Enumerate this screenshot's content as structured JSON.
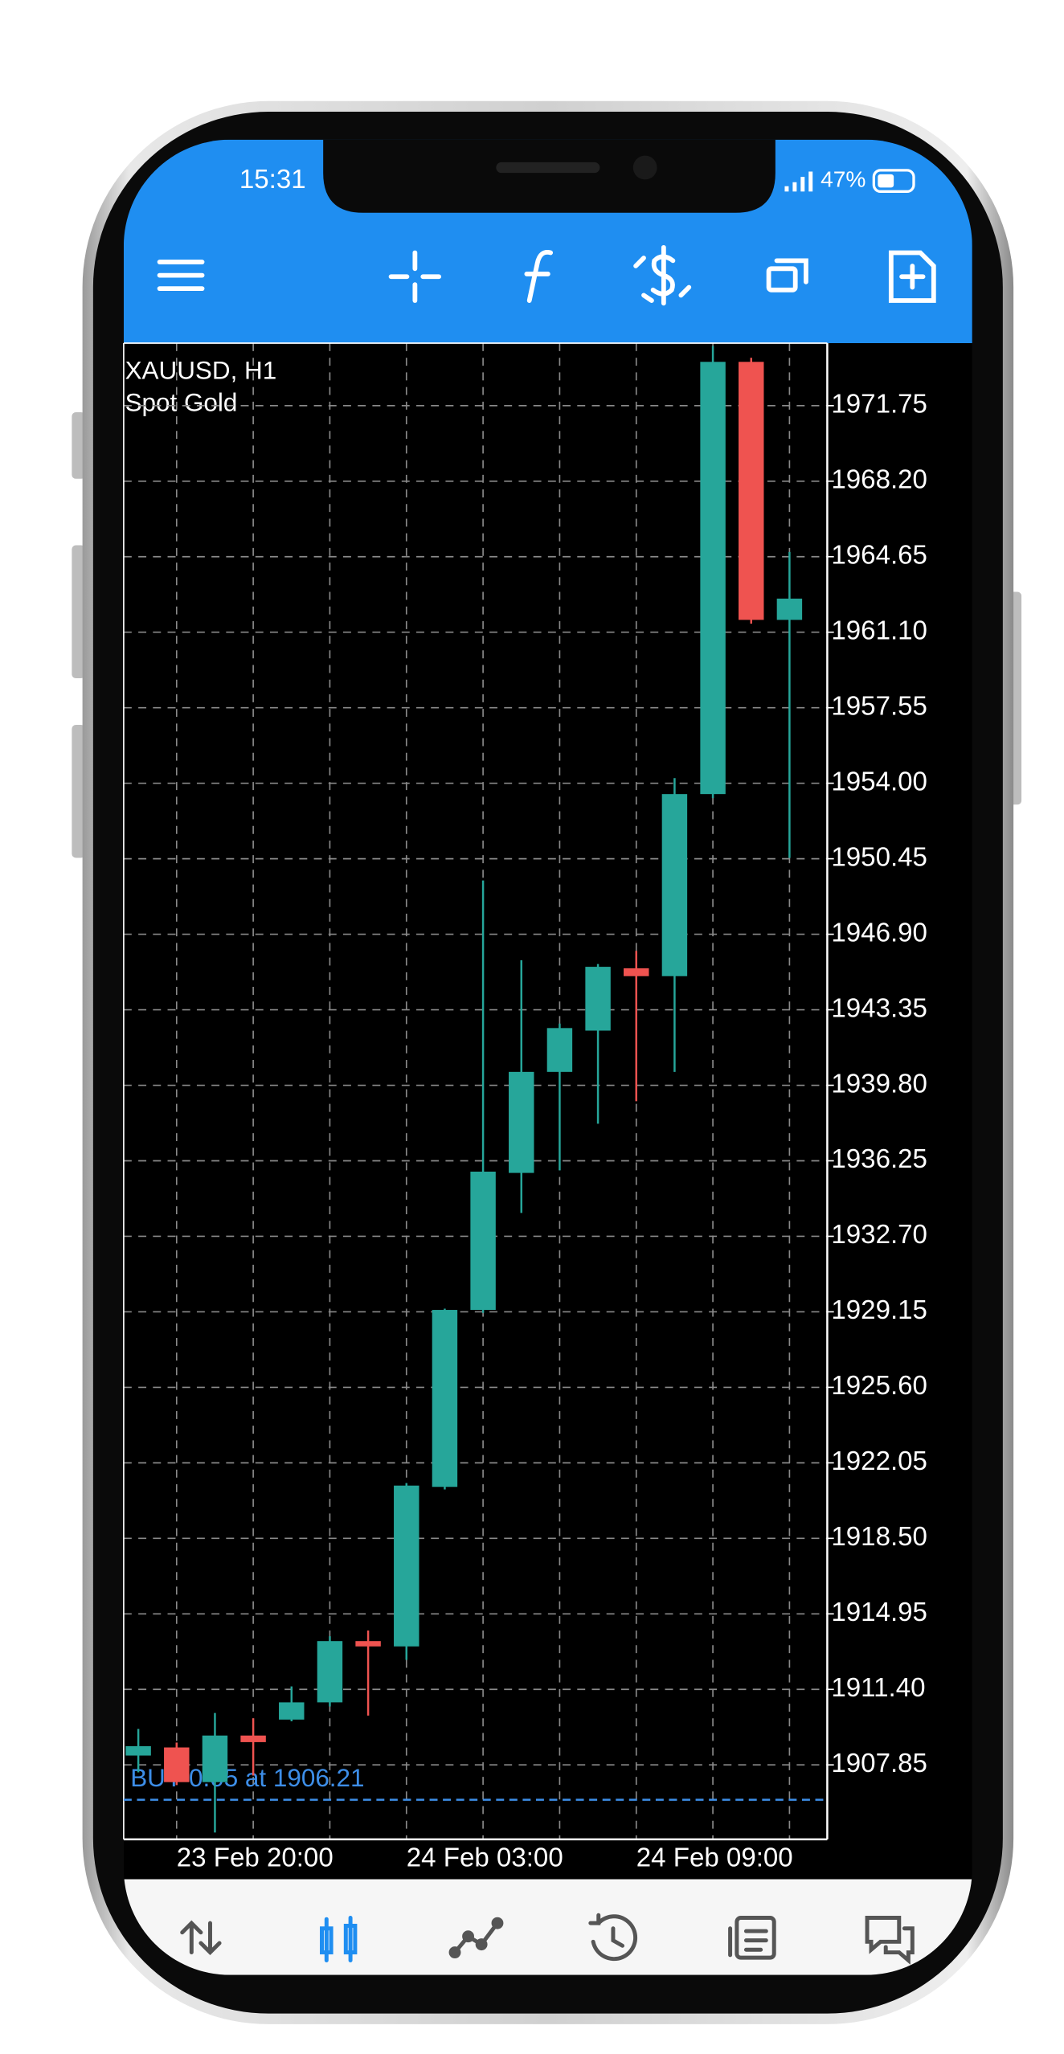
{
  "status_bar": {
    "time": "15:31",
    "battery": "47%"
  },
  "chart_data": {
    "type": "candlestick",
    "title": "XAUUSD, H1",
    "subtitle": "Spot Gold",
    "categories": [
      null,
      "23 Feb 20:00",
      null,
      null,
      null,
      null,
      null,
      "24 Feb 03:00",
      null,
      null,
      null,
      null,
      null,
      "24 Feb 09:00",
      null,
      null,
      null,
      null
    ],
    "open": [
      1908.29,
      1908.67,
      1907.04,
      1909.23,
      1909.98,
      1910.79,
      1913.67,
      1913.42,
      1920.92,
      1929.24,
      1935.68,
      1940.43,
      1942.37,
      1945.3,
      1944.93,
      1953.49,
      1973.81,
      1961.68
    ],
    "high": [
      1909.54,
      1908.9,
      1910.29,
      1910.04,
      1911.54,
      1913.9,
      1914.17,
      1921.1,
      1929.3,
      1949.43,
      1945.68,
      1942.7,
      1945.5,
      1946.12,
      1954.24,
      1974.56,
      1974.0,
      1964.87
    ],
    "low": [
      1907.5,
      1906.9,
      1904.67,
      1907.35,
      1909.9,
      1910.6,
      1910.17,
      1912.79,
      1920.8,
      1929.1,
      1933.8,
      1935.8,
      1937.99,
      1939.05,
      1940.43,
      1953.3,
      1961.5,
      1950.49
    ],
    "close": [
      1908.73,
      1907.04,
      1909.23,
      1908.92,
      1910.79,
      1913.67,
      1913.42,
      1920.98,
      1929.24,
      1935.74,
      1940.43,
      1942.49,
      1945.37,
      1944.93,
      1953.49,
      1973.81,
      1961.68,
      1962.68
    ],
    "up_color": "#26a69a",
    "down_color": "#ef5350",
    "ylim": [
      1904.35,
      1974.69
    ],
    "yticks": [
      1907.85,
      {
        "value": 1911.4,
        "label": "1911.40"
      },
      1914.95,
      {
        "value": 1918.5,
        "label": "1918.50"
      },
      1922.05,
      {
        "value": 1925.6,
        "label": "1925.60"
      },
      1929.15,
      {
        "value": 1932.7,
        "label": "1932.70"
      },
      1936.25,
      {
        "value": 1939.8,
        "label": "1939.80"
      },
      1943.35,
      {
        "value": 1946.9,
        "label": "1946.90"
      },
      1950.45,
      {
        "value": 1954,
        "label": "1954.00"
      },
      1957.55,
      {
        "value": 1961.1,
        "label": "1961.10"
      },
      1964.65,
      {
        "value": 1968.2,
        "label": "1968.20"
      },
      1971.75
    ],
    "grid": true,
    "order_line": {
      "label": "BUY 0.05 at 1906.21",
      "value": 1906.21,
      "color": "#3d8ee8"
    }
  }
}
